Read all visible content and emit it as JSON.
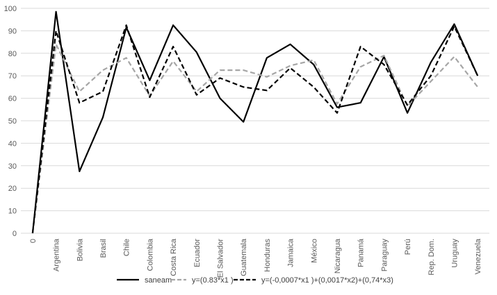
{
  "chart_data": {
    "type": "line",
    "title": "",
    "xlabel": "",
    "ylabel": "",
    "ylim": [
      0,
      100
    ],
    "yticks": [
      0,
      10,
      20,
      30,
      40,
      50,
      60,
      70,
      80,
      90,
      100
    ],
    "grid": true,
    "legend_position": "bottom",
    "categories": [
      "0",
      "Argentina",
      "Bolivia",
      "Brasil",
      "Chile",
      "Colombia",
      "Costa Rica",
      "Ecuador",
      "El Salvador",
      "Guatemala",
      "Honduras",
      "Jamaica",
      "México",
      "Nicaragua",
      "Panamá",
      "Paraguay",
      "Perú",
      "Rep. Dom.",
      "Uruguay",
      "Venezuela"
    ],
    "series": [
      {
        "name": "saneam",
        "color": "#000000",
        "style": "solid",
        "values": [
          0,
          98.5,
          27.5,
          51.5,
          91.5,
          68,
          92.5,
          80.5,
          60,
          49.5,
          78,
          84,
          75,
          56,
          58,
          78.5,
          53.5,
          76,
          93,
          70
        ]
      },
      {
        "name": "y=(0.83*x1 )",
        "color": "#a6a6a6",
        "style": "dashed",
        "values": [
          0,
          84,
          63,
          72.5,
          78,
          61,
          76.5,
          63,
          72.5,
          72.5,
          69.5,
          74.5,
          77,
          57.5,
          74,
          79,
          56.5,
          67.5,
          78.5,
          65
        ]
      },
      {
        "name": "y=(-0,0007*x1 )+(0,0017*x2)+(0,74*x3)",
        "color": "#000000",
        "style": "dashed",
        "values": [
          0,
          90,
          58,
          63,
          92.5,
          60.5,
          83,
          61.5,
          69,
          65,
          63.5,
          73.5,
          65,
          53.5,
          83,
          75,
          57,
          70,
          92,
          70
        ]
      }
    ]
  }
}
